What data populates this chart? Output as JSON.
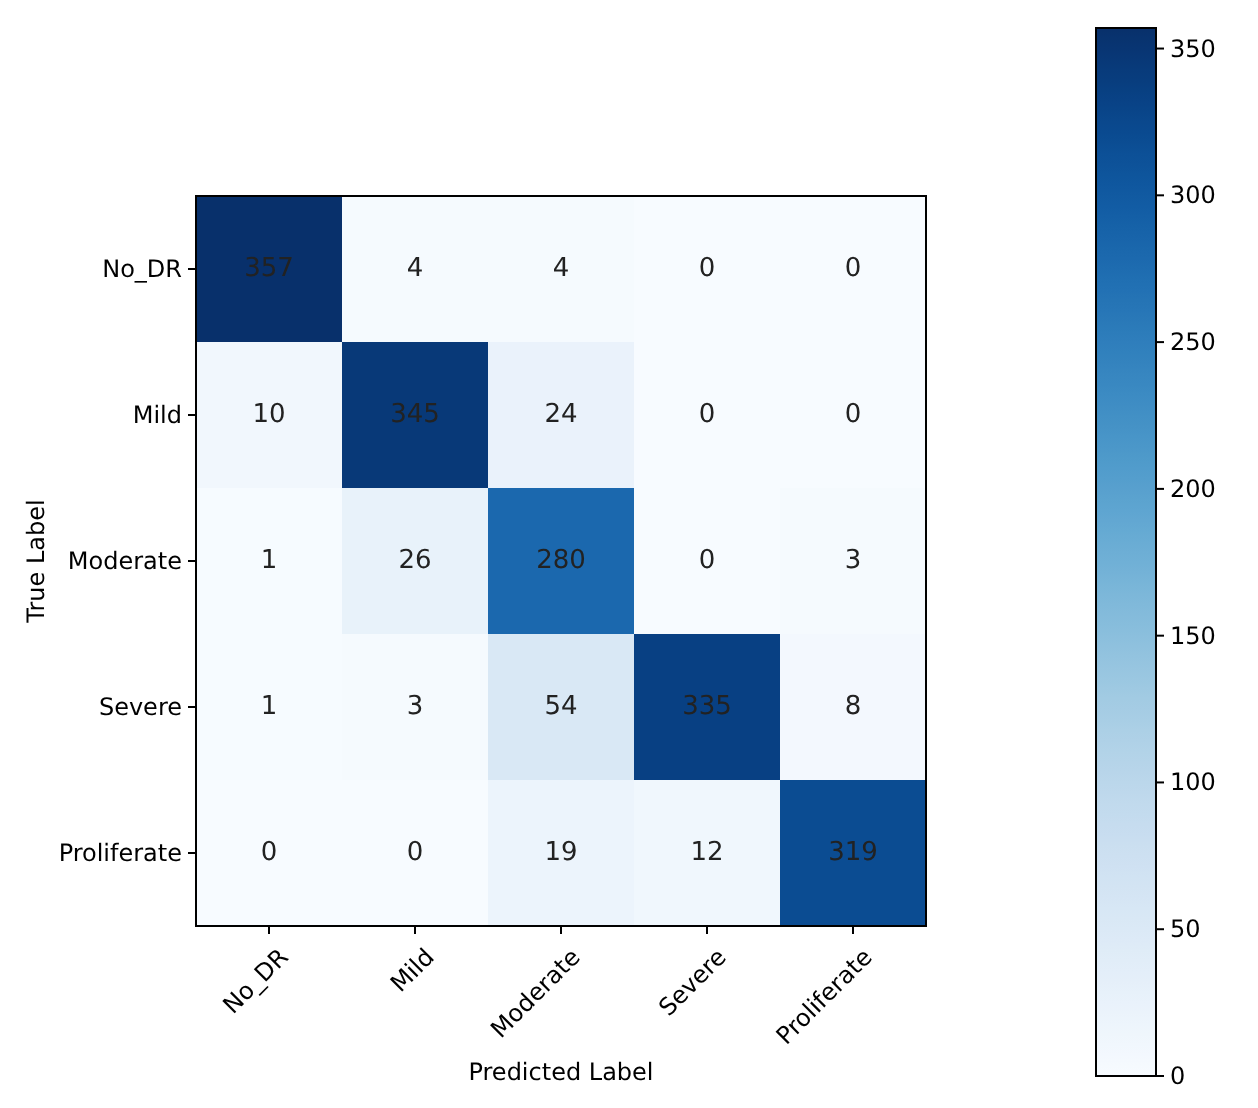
{
  "chart_data": {
    "type": "heatmap",
    "xlabel": "Predicted Label",
    "ylabel": "True Label",
    "categories": [
      "No_DR",
      "Mild",
      "Moderate",
      "Severe",
      "Proliferate"
    ],
    "y_categories": [
      "No_DR",
      "Mild",
      "Moderate",
      "Severe",
      "Proliferate"
    ],
    "cells": [
      [
        357,
        4,
        4,
        0,
        0
      ],
      [
        10,
        345,
        24,
        0,
        0
      ],
      [
        1,
        26,
        280,
        0,
        3
      ],
      [
        1,
        3,
        54,
        335,
        8
      ],
      [
        0,
        0,
        19,
        12,
        319
      ]
    ],
    "data_labels": true,
    "clim": [
      0,
      357
    ],
    "cticks": [
      0,
      50,
      100,
      150,
      200,
      250,
      300,
      350
    ]
  }
}
